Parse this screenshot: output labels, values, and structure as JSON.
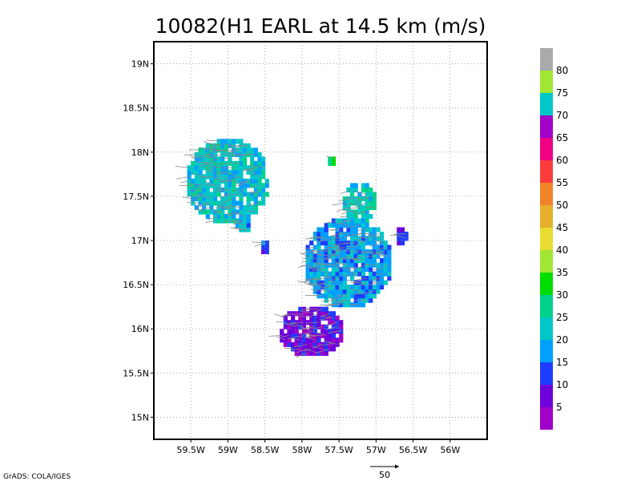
{
  "title": "10082(H1 EARL at 14.5 km (m/s)",
  "credit": "GrADS: COLA/IGES",
  "vector_scale_label": "50",
  "chart_data": {
    "type": "heatmap",
    "title": "10082(H1 EARL at 14.5 km (m/s)",
    "units": "m/s",
    "grid": true,
    "grid_style": "dotted",
    "xlim": [
      -60.0,
      -55.5
    ],
    "ylim": [
      14.75,
      19.25
    ],
    "x_ticks": [
      -59.5,
      -59.0,
      -58.5,
      -58.0,
      -57.5,
      -57.0,
      -56.5,
      -56.0
    ],
    "x_tick_labels": [
      "59.5W",
      "59W",
      "58.5W",
      "58W",
      "57.5W",
      "57W",
      "56.5W",
      "56W"
    ],
    "y_ticks": [
      15.0,
      15.5,
      16.0,
      16.5,
      17.0,
      17.5,
      18.0,
      18.5,
      19.0
    ],
    "y_tick_labels": [
      "15N",
      "15.5N",
      "16N",
      "16.5N",
      "17N",
      "17.5N",
      "18N",
      "18.5N",
      "19N"
    ],
    "colorbar": {
      "levels": [
        5,
        10,
        15,
        20,
        25,
        30,
        35,
        40,
        45,
        50,
        55,
        60,
        65,
        70,
        75,
        80
      ],
      "labels": [
        "5",
        "10",
        "15",
        "20",
        "25",
        "30",
        "35",
        "40",
        "45",
        "50",
        "55",
        "60",
        "65",
        "70",
        "75",
        "80"
      ],
      "colors": [
        "#a000c8",
        "#6e00dc",
        "#1e3cff",
        "#00a0ff",
        "#00c8c8",
        "#00d28c",
        "#00dc00",
        "#a0e632",
        "#e6dc32",
        "#e6af2d",
        "#f08228",
        "#fa3c3c",
        "#f00082",
        "#a000c8",
        "#00c8c8",
        "#a0e632",
        "#aaaaaa"
      ]
    },
    "regions": [
      {
        "name": "cluster-nw",
        "lon_min": -59.55,
        "lon_max": -58.45,
        "lat_min": 17.2,
        "lat_max": 18.15,
        "wind": 22
      },
      {
        "name": "cluster-w-small",
        "lon_min": -58.9,
        "lon_max": -58.7,
        "lat_min": 17.1,
        "lat_max": 17.25,
        "wind": 19
      },
      {
        "name": "cluster-w-dot",
        "lon_min": -58.55,
        "lon_max": -58.45,
        "lat_min": 16.85,
        "lat_max": 17.0,
        "wind": 12
      },
      {
        "name": "cluster-n-green",
        "lon_min": -57.65,
        "lon_max": -57.55,
        "lat_min": 17.85,
        "lat_max": 17.95,
        "wind": 32
      },
      {
        "name": "cluster-ne",
        "lon_min": -57.45,
        "lon_max": -57.0,
        "lat_min": 17.2,
        "lat_max": 17.65,
        "wind": 24
      },
      {
        "name": "cluster-core",
        "lon_min": -57.95,
        "lon_max": -56.8,
        "lat_min": 16.25,
        "lat_max": 17.25,
        "wind": 18
      },
      {
        "name": "cluster-east-dot",
        "lon_min": -56.72,
        "lon_max": -56.58,
        "lat_min": 16.95,
        "lat_max": 17.15,
        "wind": 10
      },
      {
        "name": "cluster-south",
        "lon_min": -58.3,
        "lon_max": -57.45,
        "lat_min": 15.7,
        "lat_max": 16.25,
        "wind": 8
      }
    ],
    "vector_reference": {
      "label": "50",
      "units": "m/s"
    }
  }
}
